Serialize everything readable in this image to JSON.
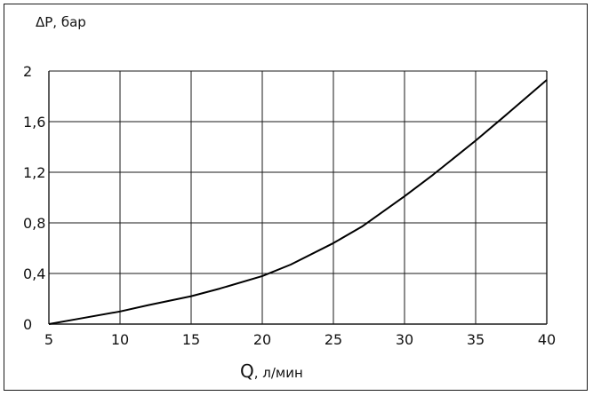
{
  "chart_data": {
    "type": "line",
    "title": "",
    "ylabel": "ΔP, бар",
    "xlabel": {
      "symbol": "Q",
      "unit": ", л/мин"
    },
    "xlim": [
      5,
      40
    ],
    "ylim": [
      0,
      2
    ],
    "x_ticks": [
      5,
      10,
      15,
      20,
      25,
      30,
      35,
      40
    ],
    "x_tick_labels": [
      "5",
      "10",
      "15",
      "20",
      "25",
      "30",
      "35",
      "40"
    ],
    "y_ticks": [
      0,
      0.4,
      0.8,
      1.2,
      1.6,
      2
    ],
    "y_tick_labels": [
      "0",
      "0,4",
      "0,8",
      "1,2",
      "1,6",
      "2"
    ],
    "grid": true,
    "series": [
      {
        "x": [
          5,
          7,
          10,
          12,
          15,
          17,
          20,
          22,
          25,
          27,
          30,
          32,
          35,
          37,
          40
        ],
        "y": [
          0,
          0.04,
          0.1,
          0.15,
          0.22,
          0.28,
          0.38,
          0.47,
          0.64,
          0.77,
          1.01,
          1.18,
          1.45,
          1.64,
          1.93
        ]
      }
    ],
    "colors": {
      "line": "#000000",
      "grid": "#1a1a1a",
      "text": "#111111"
    }
  }
}
